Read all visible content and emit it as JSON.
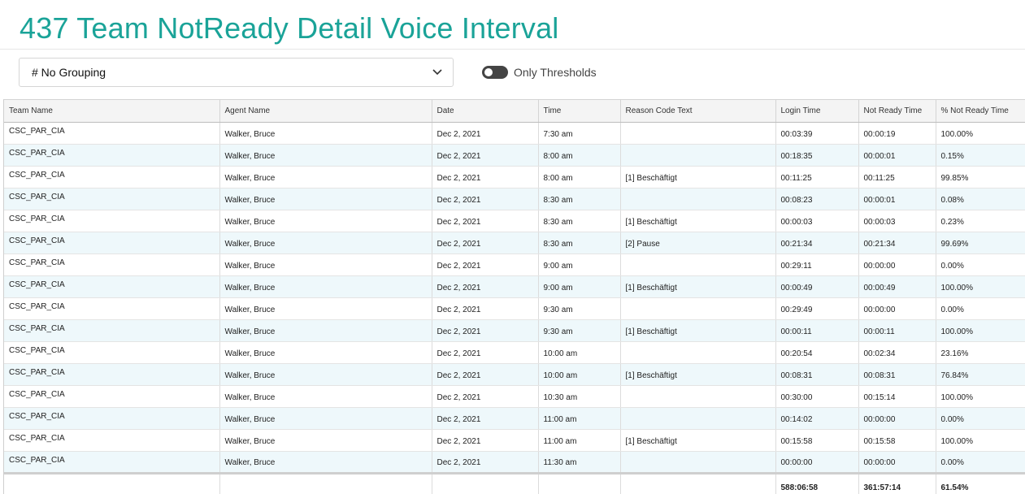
{
  "report": {
    "title": "437 Team NotReady Detail Voice Interval",
    "grouping_value": "# No Grouping",
    "thresholds_label": "Only Thresholds",
    "thresholds_on": false
  },
  "table": {
    "columns": [
      "Team Name",
      "Agent Name",
      "Date",
      "Time",
      "Reason Code Text",
      "Login Time",
      "Not Ready Time",
      "% Not Ready Time"
    ],
    "rows": [
      [
        "CSC_PAR_CIA",
        "Walker, Bruce",
        "Dec 2, 2021",
        "7:30 am",
        "",
        "00:03:39",
        "00:00:19",
        "100.00%"
      ],
      [
        "CSC_PAR_CIA",
        "Walker, Bruce",
        "Dec 2, 2021",
        "8:00 am",
        "",
        "00:18:35",
        "00:00:01",
        "0.15%"
      ],
      [
        "CSC_PAR_CIA",
        "Walker, Bruce",
        "Dec 2, 2021",
        "8:00 am",
        "[1] Beschäftigt",
        "00:11:25",
        "00:11:25",
        "99.85%"
      ],
      [
        "CSC_PAR_CIA",
        "Walker, Bruce",
        "Dec 2, 2021",
        "8:30 am",
        "",
        "00:08:23",
        "00:00:01",
        "0.08%"
      ],
      [
        "CSC_PAR_CIA",
        "Walker, Bruce",
        "Dec 2, 2021",
        "8:30 am",
        "[1] Beschäftigt",
        "00:00:03",
        "00:00:03",
        "0.23%"
      ],
      [
        "CSC_PAR_CIA",
        "Walker, Bruce",
        "Dec 2, 2021",
        "8:30 am",
        "[2] Pause",
        "00:21:34",
        "00:21:34",
        "99.69%"
      ],
      [
        "CSC_PAR_CIA",
        "Walker, Bruce",
        "Dec 2, 2021",
        "9:00 am",
        "",
        "00:29:11",
        "00:00:00",
        "0.00%"
      ],
      [
        "CSC_PAR_CIA",
        "Walker, Bruce",
        "Dec 2, 2021",
        "9:00 am",
        "[1] Beschäftigt",
        "00:00:49",
        "00:00:49",
        "100.00%"
      ],
      [
        "CSC_PAR_CIA",
        "Walker, Bruce",
        "Dec 2, 2021",
        "9:30 am",
        "",
        "00:29:49",
        "00:00:00",
        "0.00%"
      ],
      [
        "CSC_PAR_CIA",
        "Walker, Bruce",
        "Dec 2, 2021",
        "9:30 am",
        "[1] Beschäftigt",
        "00:00:11",
        "00:00:11",
        "100.00%"
      ],
      [
        "CSC_PAR_CIA",
        "Walker, Bruce",
        "Dec 2, 2021",
        "10:00 am",
        "",
        "00:20:54",
        "00:02:34",
        "23.16%"
      ],
      [
        "CSC_PAR_CIA",
        "Walker, Bruce",
        "Dec 2, 2021",
        "10:00 am",
        "[1] Beschäftigt",
        "00:08:31",
        "00:08:31",
        "76.84%"
      ],
      [
        "CSC_PAR_CIA",
        "Walker, Bruce",
        "Dec 2, 2021",
        "10:30 am",
        "",
        "00:30:00",
        "00:15:14",
        "100.00%"
      ],
      [
        "CSC_PAR_CIA",
        "Walker, Bruce",
        "Dec 2, 2021",
        "11:00 am",
        "",
        "00:14:02",
        "00:00:00",
        "0.00%"
      ],
      [
        "CSC_PAR_CIA",
        "Walker, Bruce",
        "Dec 2, 2021",
        "11:00 am",
        "[1] Beschäftigt",
        "00:15:58",
        "00:15:58",
        "100.00%"
      ],
      [
        "CSC_PAR_CIA",
        "Walker, Bruce",
        "Dec 2, 2021",
        "11:30 am",
        "",
        "00:00:00",
        "00:00:00",
        "0.00%"
      ]
    ],
    "totals": [
      "",
      "",
      "",
      "",
      "",
      "588:06:58",
      "361:57:14",
      "61.54%"
    ]
  },
  "icons": {
    "grouping_dropdown": "chevron-down-icon"
  }
}
